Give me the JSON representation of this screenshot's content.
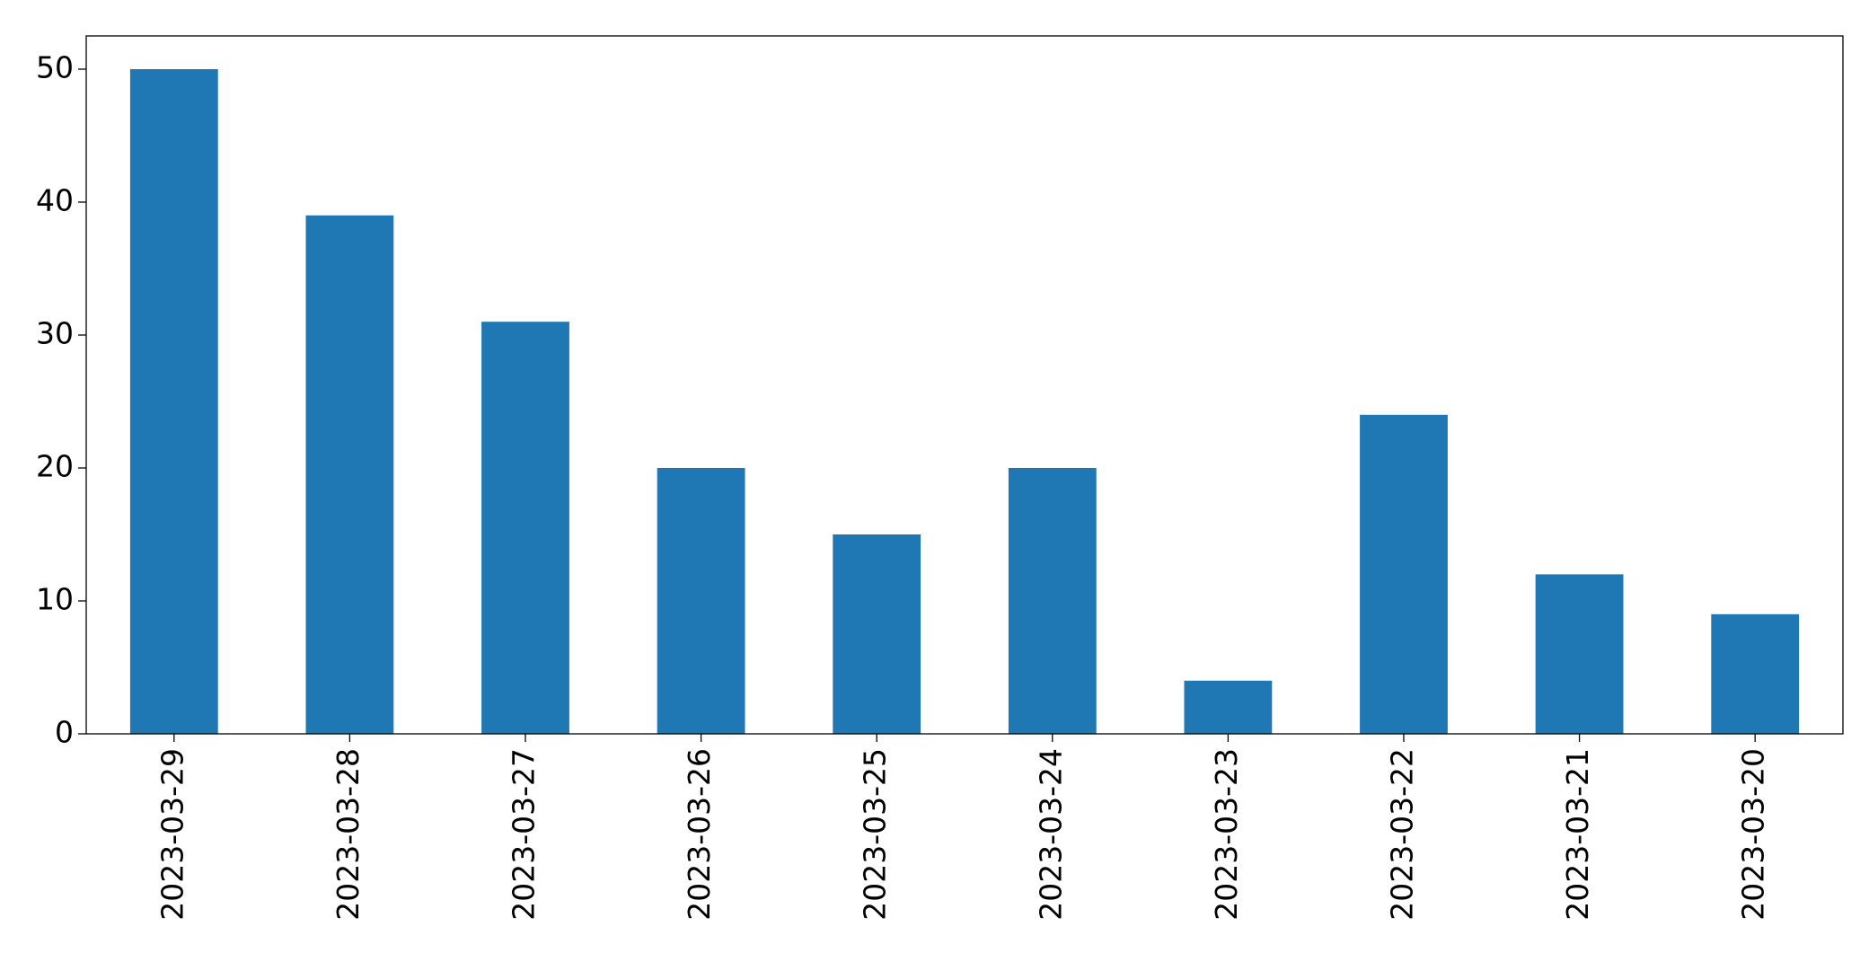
{
  "chart_data": {
    "type": "bar",
    "categories": [
      "2023-03-29",
      "2023-03-28",
      "2023-03-27",
      "2023-03-26",
      "2023-03-25",
      "2023-03-24",
      "2023-03-23",
      "2023-03-22",
      "2023-03-21",
      "2023-03-20"
    ],
    "values": [
      50,
      39,
      31,
      20,
      15,
      20,
      4,
      24,
      12,
      9
    ],
    "color": "#1f77b4",
    "ylim": [
      0,
      52.5
    ],
    "yticks": [
      0,
      10,
      20,
      30,
      40,
      50
    ],
    "grid": false
  }
}
